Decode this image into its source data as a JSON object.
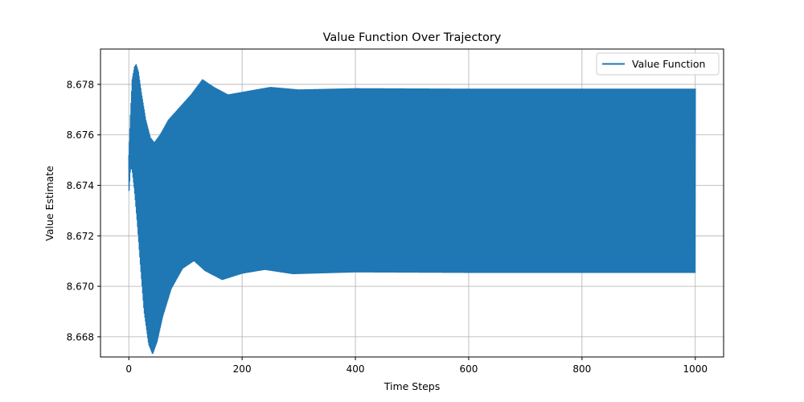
{
  "chart_data": {
    "type": "line",
    "title": "Value Function Over Trajectory",
    "xlabel": "Time Steps",
    "ylabel": "Value Estimate",
    "xlim": [
      -50,
      1050
    ],
    "ylim": [
      8.6672,
      8.6794
    ],
    "x_ticks": [
      0,
      200,
      400,
      600,
      800,
      1000
    ],
    "y_ticks": [
      8.668,
      8.67,
      8.672,
      8.674,
      8.676,
      8.678
    ],
    "x_tick_labels": [
      "0",
      "200",
      "400",
      "600",
      "800",
      "1000"
    ],
    "y_tick_labels": [
      "8.668",
      "8.670",
      "8.672",
      "8.674",
      "8.676",
      "8.678"
    ],
    "grid": true,
    "legend_position": "top-right",
    "series": [
      {
        "name": "Value Function",
        "color": "#1f77b4",
        "x_range": [
          0,
          1000
        ],
        "description_points": {
          "upper_envelope": [
            [
              0,
              8.6752
            ],
            [
              3,
              8.6768
            ],
            [
              6,
              8.6782
            ],
            [
              10,
              8.6787
            ],
            [
              13,
              8.6788
            ],
            [
              17,
              8.6785
            ],
            [
              22,
              8.6777
            ],
            [
              30,
              8.6766
            ],
            [
              38,
              8.6759
            ],
            [
              45,
              8.6757
            ],
            [
              55,
              8.676
            ],
            [
              70,
              8.6766
            ],
            [
              90,
              8.6771
            ],
            [
              110,
              8.6776
            ],
            [
              130,
              8.6782
            ],
            [
              150,
              8.6779
            ],
            [
              175,
              8.6776
            ],
            [
              200,
              8.6777
            ],
            [
              250,
              8.6779
            ],
            [
              300,
              8.6778
            ],
            [
              400,
              8.67785
            ],
            [
              600,
              8.67783
            ],
            [
              800,
              8.67783
            ],
            [
              1000,
              8.67783
            ]
          ],
          "lower_envelope": [
            [
              0,
              8.6736
            ],
            [
              3,
              8.6747
            ],
            [
              6,
              8.6746
            ],
            [
              10,
              8.6738
            ],
            [
              15,
              8.6725
            ],
            [
              20,
              8.671
            ],
            [
              27,
              8.669
            ],
            [
              35,
              8.6677
            ],
            [
              42,
              8.6673
            ],
            [
              50,
              8.6678
            ],
            [
              60,
              8.6688
            ],
            [
              75,
              8.6699
            ],
            [
              95,
              8.6707
            ],
            [
              115,
              8.671
            ],
            [
              135,
              8.6706
            ],
            [
              165,
              8.67025
            ],
            [
              200,
              8.6705
            ],
            [
              240,
              8.67065
            ],
            [
              290,
              8.67048
            ],
            [
              400,
              8.67055
            ],
            [
              600,
              8.67053
            ],
            [
              800,
              8.67053
            ],
            [
              1000,
              8.67053
            ]
          ]
        }
      }
    ]
  }
}
